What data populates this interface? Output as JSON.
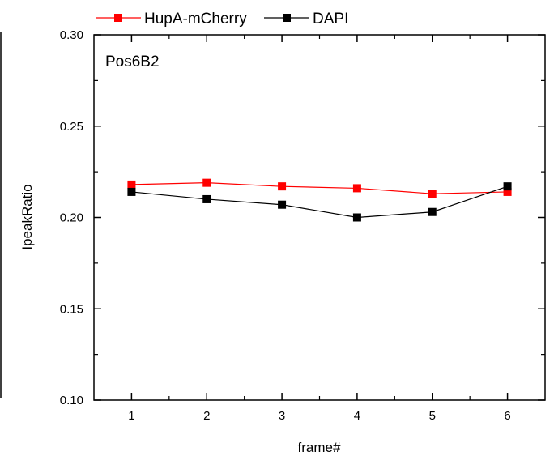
{
  "chart_data": {
    "type": "line",
    "annotation": "Pos6B2",
    "xlabel": "frame#",
    "ylabel": "IpeakRatio",
    "xlim": [
      0.5,
      6.5
    ],
    "ylim": [
      0.1,
      0.3
    ],
    "x_ticks": [
      1,
      2,
      3,
      4,
      5,
      6
    ],
    "x_tick_labels": [
      "1",
      "2",
      "3",
      "4",
      "5",
      "6"
    ],
    "y_ticks": [
      0.1,
      0.15,
      0.2,
      0.25,
      0.3
    ],
    "y_tick_labels": [
      "0.10",
      "0.15",
      "0.20",
      "0.25",
      "0.30"
    ],
    "grid": false,
    "legend_position": "top",
    "series": [
      {
        "name": "HupA-mCherry",
        "color": "#ff0000",
        "marker": "square",
        "x": [
          1,
          2,
          3,
          4,
          5,
          6
        ],
        "y": [
          0.218,
          0.219,
          0.217,
          0.216,
          0.213,
          0.214
        ]
      },
      {
        "name": "DAPI",
        "color": "#000000",
        "marker": "square",
        "x": [
          1,
          2,
          3,
          4,
          5,
          6
        ],
        "y": [
          0.214,
          0.21,
          0.207,
          0.2,
          0.203,
          0.217
        ]
      }
    ]
  }
}
